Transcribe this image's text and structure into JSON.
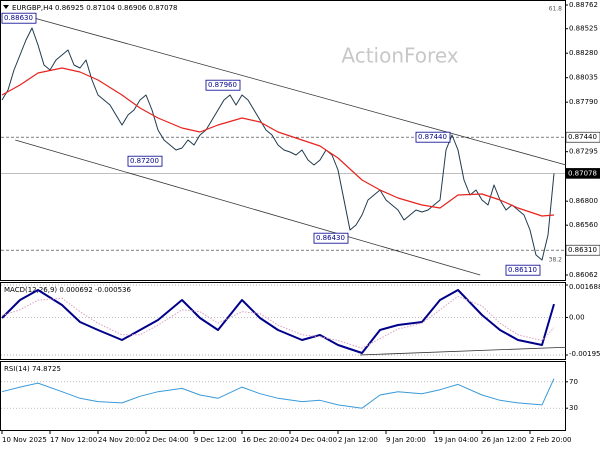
{
  "chart_data": [
    {
      "type": "line",
      "title": "EURGBP,H4 0.86925 0.87104 0.86906 0.87078",
      "watermark": "ActionForex",
      "fib_labels": [
        61.8,
        38.2
      ],
      "xlim": [
        0,
        94
      ],
      "xticks": [
        {
          "value": 0,
          "label": "10 Nov 2025"
        },
        {
          "value": 8,
          "label": "17 Nov 12:00"
        },
        {
          "value": 16,
          "label": "24 Nov 20:00"
        },
        {
          "value": 24,
          "label": "2 Dec 04:00"
        },
        {
          "value": 32,
          "label": "9 Dec 12:00"
        },
        {
          "value": 40,
          "label": "16 Dec 20:00"
        },
        {
          "value": 48,
          "label": "24 Dec 04:00"
        },
        {
          "value": 56,
          "label": "2 Jan 12:00"
        },
        {
          "value": 64,
          "label": "9 Jan 20:00"
        },
        {
          "value": 72,
          "label": "19 Jan 04:00"
        },
        {
          "value": 80,
          "label": "26 Jan 12:00"
        },
        {
          "value": 88,
          "label": "2 Feb 20:00"
        }
      ],
      "ylim": [
        0.86062,
        0.88762
      ],
      "yticks": [
        0.88762,
        0.88525,
        {
          "value": 0.8828,
          "label": "0.88280"
        },
        0.88035,
        {
          "value": 0.8779,
          "label": "0.87790"
        },
        0.87295,
        {
          "value": 0.868,
          "label": "0.86800"
        },
        {
          "value": 0.8656,
          "label": "0.86560"
        },
        0.86062
      ],
      "grid": false,
      "levels": [
        {
          "value": 0.8744,
          "label": "0.87440",
          "style": "dashed"
        },
        {
          "value": 0.87078,
          "label": "0.87078",
          "style": "current"
        },
        {
          "value": 0.8631,
          "label": "0.86310",
          "style": "dashed"
        }
      ],
      "series": [
        {
          "name": "EURGBP",
          "color": "#1f3a4d",
          "width": 1,
          "x": [
            0,
            1,
            2,
            3,
            4,
            5,
            6,
            7,
            8,
            9,
            10,
            11,
            12,
            13,
            14,
            15,
            16,
            17,
            18,
            19,
            20,
            21,
            22,
            23,
            24,
            25,
            26,
            27,
            28,
            29,
            30,
            31,
            32,
            33,
            34,
            35,
            36,
            37,
            38,
            39,
            40,
            41,
            42,
            43,
            44,
            45,
            46,
            47,
            48,
            49,
            50,
            51,
            52,
            53,
            54,
            55,
            56,
            57,
            58,
            59,
            60,
            61,
            62,
            63,
            64,
            65,
            66,
            67,
            68,
            69,
            70,
            71,
            72,
            73,
            74,
            75,
            76,
            77,
            78,
            79,
            80,
            81,
            82,
            83,
            84,
            85,
            86,
            87,
            88,
            89,
            90,
            91,
            92
          ],
          "values": [
            0.87812,
            0.87912,
            0.88112,
            0.88262,
            0.88412,
            0.88532,
            0.88362,
            0.88162,
            0.88112,
            0.88212,
            0.88262,
            0.88312,
            0.88162,
            0.88132,
            0.88212,
            0.88012,
            0.87862,
            0.87812,
            0.87762,
            0.87662,
            0.87562,
            0.87662,
            0.87712,
            0.87812,
            0.87862,
            0.87712,
            0.87512,
            0.87412,
            0.87362,
            0.87312,
            0.87332,
            0.87412,
            0.87362,
            0.87462,
            0.87512,
            0.87612,
            0.87712,
            0.87812,
            0.87862,
            0.87762,
            0.87862,
            0.87812,
            0.87712,
            0.87612,
            0.87512,
            0.87462,
            0.87362,
            0.87312,
            0.87292,
            0.87262,
            0.87312,
            0.87212,
            0.87162,
            0.87212,
            0.87312,
            0.87262,
            0.87112,
            0.86812,
            0.86512,
            0.86562,
            0.86662,
            0.86812,
            0.86862,
            0.86912,
            0.86812,
            0.86762,
            0.86712,
            0.86612,
            0.86662,
            0.86712,
            0.86692,
            0.86712,
            0.86762,
            0.86812,
            0.87312,
            0.87462,
            0.87312,
            0.87012,
            0.86862,
            0.86912,
            0.86812,
            0.86762,
            0.86962,
            0.86812,
            0.86712,
            0.86762,
            0.86712,
            0.86662,
            0.86512,
            0.86262,
            0.86212,
            0.86462,
            0.87078
          ]
        },
        {
          "name": "MA",
          "color": "#e8231e",
          "width": 1.2,
          "x": [
            0,
            3,
            6,
            10,
            13,
            16,
            20,
            23,
            26,
            30,
            33,
            36,
            40,
            43,
            46,
            50,
            53,
            56,
            60,
            63,
            66,
            70,
            73,
            76,
            80,
            83,
            86,
            90,
            92
          ],
          "values": [
            0.87862,
            0.87962,
            0.88082,
            0.88132,
            0.88092,
            0.88012,
            0.87862,
            0.87732,
            0.87632,
            0.87532,
            0.87492,
            0.87562,
            0.87632,
            0.87592,
            0.87492,
            0.87412,
            0.87352,
            0.87232,
            0.87012,
            0.86912,
            0.86832,
            0.86762,
            0.86732,
            0.86862,
            0.86872,
            0.86812,
            0.86732,
            0.86652,
            0.86662
          ]
        }
      ],
      "trend_lines": [
        {
          "x": [
            5.5,
            94
          ],
          "y": [
            0.8863,
            0.87162
          ]
        },
        {
          "x": [
            2.2,
            79.7
          ],
          "y": [
            0.87412,
            0.86062
          ]
        }
      ],
      "annotations": [
        {
          "x": 0,
          "value": 0.8863,
          "label": "0.88630"
        },
        {
          "x": 34,
          "value": 0.8796,
          "label": "0.87960"
        },
        {
          "x": 21,
          "value": 0.872,
          "label": "0.87200"
        },
        {
          "x": 69,
          "value": 0.8744,
          "label": "0.87440"
        },
        {
          "x": 52,
          "value": 0.8643,
          "label": "0.86430"
        },
        {
          "x": 84,
          "value": 0.8611,
          "label": "0.86110"
        }
      ]
    },
    {
      "type": "line",
      "title": "MACD(12,26,9) 0.000692 -0.000536",
      "ylim": [
        -0.001953,
        0.001688
      ],
      "yticks": [
        0.001688,
        {
          "value": 0,
          "label": "0.00"
        },
        -0.001953
      ],
      "grid": true,
      "series": [
        {
          "name": "MACD",
          "color": "#00008b",
          "width": 2,
          "x": [
            0,
            3,
            6,
            10,
            13,
            16,
            20,
            23,
            26,
            30,
            33,
            36,
            40,
            43,
            46,
            50,
            53,
            56,
            60,
            63,
            66,
            70,
            73,
            76,
            80,
            83,
            86,
            90,
            92
          ],
          "values": [
            -2.8e-05,
            0.000908,
            0.001428,
            0.000648,
            -0.000236,
            -0.000652,
            -0.001173,
            -0.000652,
            -0.000132,
            0.000908,
            -2.8e-05,
            -0.000652,
            0.000908,
            -2.8e-05,
            -0.000652,
            -0.001173,
            -0.000913,
            -0.001433,
            -0.00185,
            -0.000652,
            -0.000392,
            -0.000236,
            0.000908,
            0.001428,
            0.000128,
            -0.000652,
            -0.001173,
            -0.001433,
            0.000692
          ]
        },
        {
          "name": "Signal",
          "color": "#d9a0c0",
          "width": 1,
          "style": "dotted",
          "x": [
            0,
            3,
            6,
            10,
            13,
            16,
            20,
            23,
            26,
            30,
            33,
            36,
            40,
            43,
            46,
            50,
            53,
            56,
            60,
            63,
            66,
            70,
            73,
            76,
            80,
            83,
            86,
            90,
            92
          ],
          "values": [
            0.0001,
            0.0004,
            0.0009,
            0.001,
            0.0003,
            -0.0003,
            -0.0009,
            -0.0009,
            -0.0004,
            0.0004,
            0.0003,
            -0.0003,
            0.0003,
            0.0002,
            -0.0004,
            -0.0009,
            -0.001,
            -0.0012,
            -0.0016,
            -0.0011,
            -0.0006,
            -0.0003,
            0.0004,
            0.0011,
            0.0006,
            -0.0003,
            -0.0009,
            -0.0012,
            -0.000536
          ]
        }
      ],
      "trend_lines": [
        {
          "x": [
            59.7,
            94
          ],
          "y": [
            -0.00195,
            -0.00155
          ]
        }
      ]
    },
    {
      "type": "line",
      "title": "RSI(14) 74.8725",
      "ylim": [
        0,
        100
      ],
      "yticks": [
        70,
        30
      ],
      "grid": true,
      "series": [
        {
          "name": "RSI",
          "color": "#3a9ad9",
          "width": 1,
          "x": [
            0,
            3,
            6,
            10,
            13,
            16,
            20,
            23,
            26,
            30,
            33,
            36,
            40,
            43,
            46,
            50,
            53,
            56,
            60,
            63,
            66,
            70,
            73,
            76,
            80,
            83,
            86,
            90,
            92
          ],
          "values": [
            55,
            62,
            68,
            55,
            45,
            40,
            38,
            48,
            55,
            60,
            50,
            45,
            62,
            52,
            45,
            40,
            42,
            35,
            30,
            50,
            55,
            52,
            58,
            66,
            50,
            42,
            38,
            35,
            74.8725
          ]
        }
      ]
    }
  ]
}
